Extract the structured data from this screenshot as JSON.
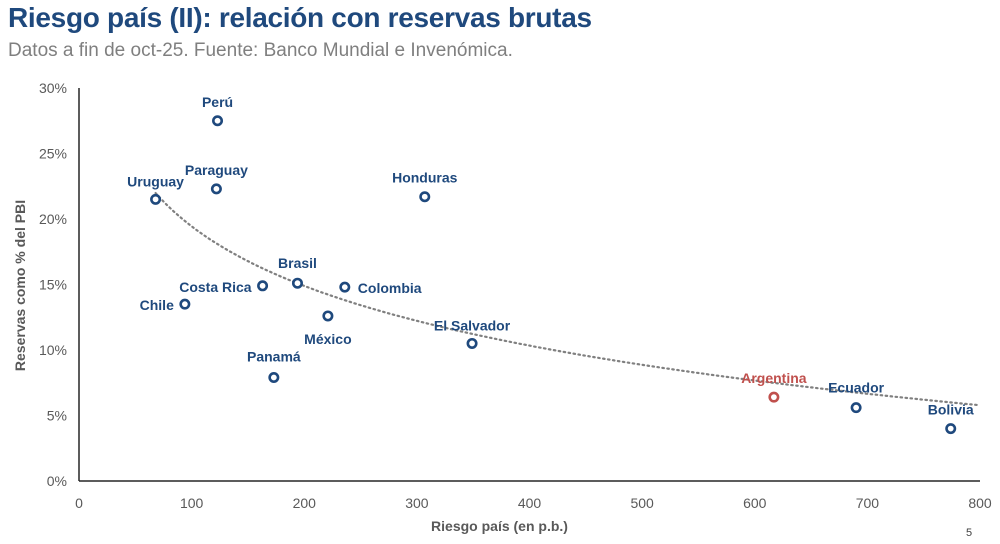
{
  "header": {
    "title": "Riesgo país (II): relación con reservas brutas",
    "subtitle": "Datos a fin de oct-25. Fuente: Banco Mundial e Invenómica."
  },
  "page_number": "5",
  "chart_data": {
    "type": "scatter",
    "title": "Riesgo país (II): relación con reservas brutas",
    "xlabel": "Riesgo país (en p.b.)",
    "ylabel": "Reservas como % del PBI",
    "xlim": [
      0,
      800
    ],
    "ylim": [
      0,
      30
    ],
    "xticks": [
      0,
      100,
      200,
      300,
      400,
      500,
      600,
      700,
      800
    ],
    "yticks": [
      0,
      5,
      10,
      15,
      20,
      25,
      30
    ],
    "ytick_labels": [
      "0%",
      "5%",
      "10%",
      "15%",
      "20%",
      "25%",
      "30%"
    ],
    "grid": false,
    "colors": {
      "default": "#1f497d",
      "highlight": "#c0504d",
      "trend": "#808080"
    },
    "points": [
      {
        "label": "Perú",
        "x": 123,
        "y": 27.5,
        "highlight": false
      },
      {
        "label": "Paraguay",
        "x": 122,
        "y": 22.3,
        "highlight": false
      },
      {
        "label": "Uruguay",
        "x": 68,
        "y": 21.5,
        "highlight": false
      },
      {
        "label": "Honduras",
        "x": 307,
        "y": 21.7,
        "highlight": false
      },
      {
        "label": "Brasil",
        "x": 194,
        "y": 15.1,
        "highlight": false
      },
      {
        "label": "Colombia",
        "x": 236,
        "y": 14.8,
        "highlight": false
      },
      {
        "label": "Costa Rica",
        "x": 163,
        "y": 14.9,
        "highlight": false
      },
      {
        "label": "Chile",
        "x": 94,
        "y": 13.5,
        "highlight": false
      },
      {
        "label": "México",
        "x": 221,
        "y": 12.6,
        "highlight": false
      },
      {
        "label": "El Salvador",
        "x": 349,
        "y": 10.5,
        "highlight": false
      },
      {
        "label": "Panamá",
        "x": 173,
        "y": 7.9,
        "highlight": false
      },
      {
        "label": "Argentina",
        "x": 617,
        "y": 6.4,
        "highlight": true
      },
      {
        "label": "Ecuador",
        "x": 690,
        "y": 5.6,
        "highlight": false
      },
      {
        "label": "Bolivia",
        "x": 774,
        "y": 4.0,
        "highlight": false
      }
    ],
    "trendline": {
      "type": "logarithmic",
      "a": 49.7,
      "b": -6.57,
      "x_range": [
        68,
        800
      ]
    }
  }
}
